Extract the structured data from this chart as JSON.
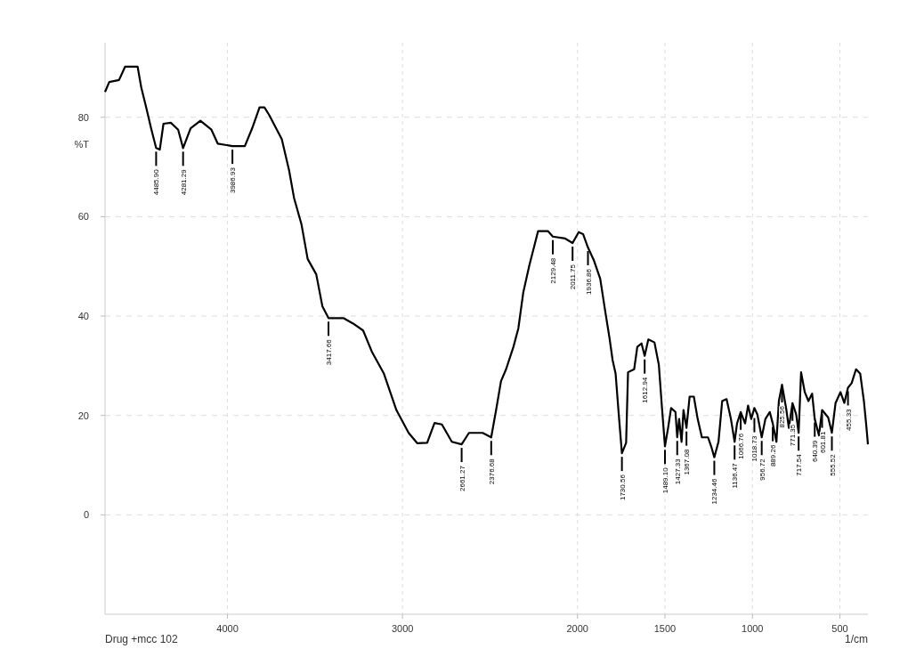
{
  "chart_data": {
    "type": "line",
    "xlabel": "1/cm",
    "ylabel": "%T",
    "annotations": [
      "Drug +mcc 102",
      {
        "text": "4485.90",
        "x": 4408,
        "y": 73.8
      },
      {
        "text": "4281.29",
        "x": 4254,
        "y": 73.8
      },
      {
        "text": "3986.93",
        "x": 3972,
        "y": 74.2
      },
      {
        "text": "3417.66",
        "x": 3423,
        "y": 39.6
      },
      {
        "text": "2661.27",
        "x": 2662,
        "y": 14.2
      },
      {
        "text": "2376.68",
        "x": 2493,
        "y": 15.6
      },
      {
        "text": "2129.48",
        "x": 2141,
        "y": 56
      },
      {
        "text": "2011.75",
        "x": 2028,
        "y": 54.7
      },
      {
        "text": "1936.86",
        "x": 1940,
        "y": 53.8
      },
      {
        "text": "1730.56",
        "x": 1746,
        "y": 12.4
      },
      {
        "text": "1612.94",
        "x": 1616,
        "y": 32
      },
      {
        "text": "1489.10",
        "x": 1500,
        "y": 13.8
      },
      {
        "text": "1427.33",
        "x": 1430,
        "y": 15.6
      },
      {
        "text": "1367.08",
        "x": 1377,
        "y": 17.5
      },
      {
        "text": "1234.46",
        "x": 1218,
        "y": 11.6
      },
      {
        "text": "1136.47",
        "x": 1102,
        "y": 14.7
      },
      {
        "text": "1066.76",
        "x": 1067,
        "y": 20.7
      },
      {
        "text": "1018.73",
        "x": 989,
        "y": 20.2
      },
      {
        "text": "956.72",
        "x": 947,
        "y": 15.6
      },
      {
        "text": "889.26",
        "x": 884,
        "y": 18.4
      },
      {
        "text": "825.56",
        "x": 831,
        "y": 26.2
      },
      {
        "text": "771.35",
        "x": 771,
        "y": 22.5
      },
      {
        "text": "717.54",
        "x": 736,
        "y": 16.5
      },
      {
        "text": "640.39",
        "x": 644,
        "y": 19.3
      },
      {
        "text": "601.81",
        "x": 602,
        "y": 21.1
      },
      {
        "text": "555.52",
        "x": 546,
        "y": 16.5
      },
      {
        "text": "455.33",
        "x": 454,
        "y": 25.6
      }
    ],
    "xlim": [
      4700,
      340
    ],
    "xticks": [
      4000,
      3000,
      2000,
      1500,
      1000,
      500
    ],
    "ylim": [
      -20,
      95
    ],
    "yticks": [
      0,
      20,
      40,
      60,
      80
    ],
    "grid": true,
    "marker": "none",
    "line_style": "solid",
    "series": [
      {
        "color": "#000000",
        "x": [
          4700,
          4676,
          4620,
          4585,
          4514,
          4493,
          4465,
          4437,
          4408,
          4387,
          4366,
          4324,
          4282,
          4254,
          4211,
          4155,
          4092,
          4056,
          3972,
          3901,
          3859,
          3817,
          3789,
          3761,
          3718,
          3690,
          3648,
          3620,
          3577,
          3542,
          3493,
          3458,
          3423,
          3338,
          3282,
          3225,
          3176,
          3106,
          3035,
          2965,
          2915,
          2859,
          2817,
          2775,
          2718,
          2662,
          2620,
          2542,
          2493,
          2465,
          2437,
          2408,
          2366,
          2338,
          2310,
          2275,
          2225,
          2169,
          2141,
          2070,
          2028,
          1993,
          1968,
          1940,
          1905,
          1870,
          1842,
          1817,
          1799,
          1782,
          1764,
          1746,
          1722,
          1711,
          1676,
          1658,
          1634,
          1616,
          1595,
          1560,
          1535,
          1518,
          1500,
          1482,
          1465,
          1440,
          1430,
          1419,
          1405,
          1394,
          1377,
          1359,
          1335,
          1313,
          1289,
          1254,
          1236,
          1218,
          1194,
          1173,
          1148,
          1123,
          1102,
          1088,
          1067,
          1042,
          1025,
          1007,
          989,
          972,
          947,
          926,
          901,
          884,
          863,
          849,
          831,
          806,
          792,
          771,
          750,
          736,
          722,
          701,
          680,
          659,
          644,
          620,
          602,
          567,
          546,
          525,
          497,
          475,
          454,
          433,
          408,
          384,
          363,
          349,
          340
        ],
        "values": [
          85.1,
          87.1,
          87.5,
          90.2,
          90.2,
          86,
          82,
          77.8,
          73.8,
          73.5,
          78.7,
          78.9,
          77.5,
          73.8,
          77.8,
          79.3,
          77.5,
          74.7,
          74.2,
          74.2,
          77.8,
          82,
          82,
          80.4,
          77.5,
          75.6,
          69.3,
          63.8,
          58.4,
          51.5,
          48.4,
          42,
          39.6,
          39.6,
          38.5,
          37.1,
          32.9,
          28.4,
          21.1,
          16.5,
          14.4,
          14.5,
          18.5,
          18.2,
          14.7,
          14.2,
          16.5,
          16.5,
          15.6,
          21.1,
          26.9,
          29.3,
          33.8,
          37.5,
          44.7,
          50.2,
          57.1,
          57.1,
          56,
          55.6,
          54.7,
          56.9,
          56.5,
          53.8,
          51.1,
          47.5,
          41.1,
          35.6,
          31.1,
          28.4,
          20.2,
          12.4,
          14.5,
          28.7,
          29.3,
          33.8,
          34.5,
          32,
          35.3,
          34.7,
          30.2,
          22,
          13.8,
          17.5,
          21.5,
          20.7,
          15.6,
          19.3,
          14.7,
          21.1,
          17.5,
          23.8,
          23.8,
          19.3,
          15.6,
          15.6,
          13.8,
          11.6,
          14.7,
          22.9,
          23.3,
          19.3,
          14.7,
          18.4,
          20.7,
          18.4,
          22,
          19.3,
          21.5,
          20.2,
          15.6,
          19.3,
          20.7,
          18.4,
          14.7,
          22.9,
          26.2,
          21.1,
          17.5,
          22.5,
          20.2,
          16.5,
          28.7,
          24.7,
          22.9,
          24.4,
          19.3,
          16,
          21.1,
          19.6,
          16.5,
          22.5,
          24.7,
          22.5,
          25.6,
          26.5,
          29.3,
          28.4,
          22.9,
          17.8,
          14.2
        ]
      }
    ]
  }
}
